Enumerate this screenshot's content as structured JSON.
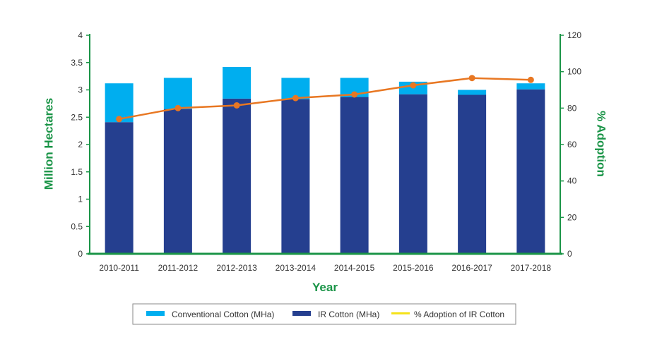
{
  "chart_data": {
    "type": "bar",
    "stacked": true,
    "categories": [
      "2010-2011",
      "2011-2012",
      "2012-2013",
      "2013-2014",
      "2014-2015",
      "2015-2016",
      "2016-2017",
      "2017-2018"
    ],
    "series": [
      {
        "name": "IR Cotton (MHa)",
        "type": "bar",
        "axis": "left",
        "color": "#253f8f",
        "values": [
          2.41,
          2.65,
          2.84,
          2.83,
          2.87,
          2.92,
          2.91,
          3.01
        ]
      },
      {
        "name": "Conventional Cotton (MHa)",
        "type": "bar",
        "axis": "left",
        "color": "#00aeef",
        "values": [
          0.71,
          0.57,
          0.58,
          0.39,
          0.35,
          0.23,
          0.09,
          0.11
        ]
      },
      {
        "name": "% Adoption of IR Cotton",
        "type": "line",
        "axis": "right",
        "color": "#e87722",
        "legend_color": "#f5e21b",
        "values": [
          74,
          80,
          81.5,
          85.5,
          87.5,
          92.5,
          96.5,
          95.5
        ]
      }
    ],
    "left_axis": {
      "label": "Million Hectares",
      "ylim": [
        0,
        4
      ],
      "ticks": [
        "0",
        "0.5",
        "1",
        "1.5",
        "2",
        "2.5",
        "3",
        "3.5",
        "4"
      ]
    },
    "right_axis": {
      "label": "% Adoption",
      "ylim": [
        0,
        120
      ],
      "ticks": [
        "0",
        "20",
        "40",
        "60",
        "80",
        "100",
        "120"
      ]
    },
    "xlabel": "Year",
    "grid": false,
    "legend_position": "bottom-center",
    "axis_color": "#1a9447",
    "legend": [
      {
        "label": "Conventional Cotton (MHa)",
        "color": "#00aeef"
      },
      {
        "label": "IR Cotton (MHa)",
        "color": "#253f8f"
      },
      {
        "label": "% Adoption of IR Cotton",
        "color": "#f5e21b"
      }
    ]
  }
}
